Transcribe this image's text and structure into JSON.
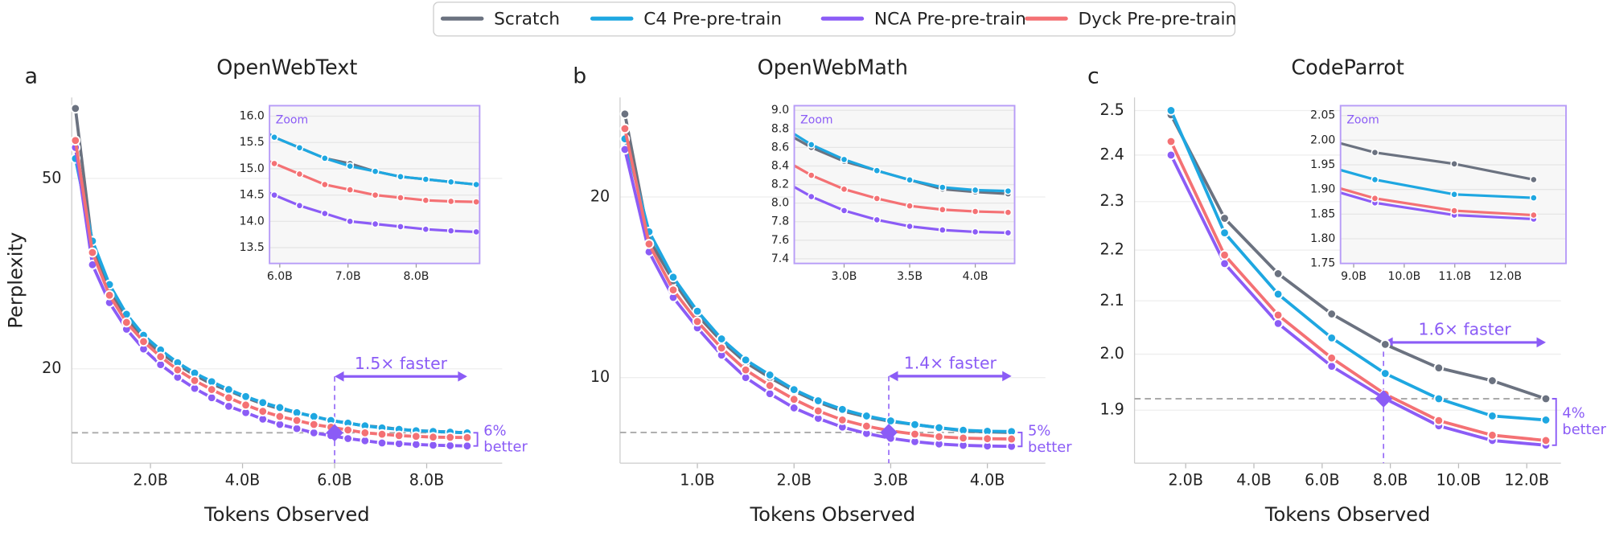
{
  "chart_data": [
    {
      "type": "line",
      "panel_label": "a",
      "title": "OpenWebText",
      "xlabel": "Tokens Observed",
      "ylabel": "Perplexity",
      "log_y": true,
      "grid": true,
      "x": [
        0.37,
        0.74,
        1.11,
        1.48,
        1.85,
        2.22,
        2.59,
        2.96,
        3.33,
        3.7,
        4.07,
        4.44,
        4.81,
        5.18,
        5.55,
        5.92,
        6.29,
        6.66,
        7.03,
        7.4,
        7.77,
        8.14,
        8.51,
        8.88
      ],
      "series": [
        {
          "name": "Scratch",
          "color": "#6b7280",
          "values": [
            70,
            36,
            29,
            25.5,
            23.2,
            21.6,
            20.4,
            19.4,
            18.6,
            18.0,
            17.4,
            16.9,
            16.5,
            16.2,
            15.9,
            15.6,
            15.4,
            15.2,
            15.1,
            14.95,
            14.85,
            14.8,
            14.75,
            14.7
          ]
        },
        {
          "name": "C4 Pre-pre-train",
          "color": "#1ea7e1",
          "values": [
            55,
            37,
            30,
            26,
            23.5,
            21.9,
            20.6,
            19.6,
            18.8,
            18.1,
            17.5,
            17.0,
            16.6,
            16.2,
            15.9,
            15.6,
            15.4,
            15.2,
            15.05,
            14.95,
            14.85,
            14.8,
            14.75,
            14.7
          ]
        },
        {
          "name": "NCA Pre-pre-train",
          "color": "#8b5cf6",
          "values": [
            58,
            33,
            27.5,
            24.2,
            22,
            20.4,
            19.2,
            18.2,
            17.4,
            16.7,
            16.2,
            15.7,
            15.3,
            15.0,
            14.7,
            14.5,
            14.3,
            14.15,
            14.0,
            13.95,
            13.9,
            13.85,
            13.82,
            13.8
          ]
        },
        {
          "name": "Dyck Pre-pre-train",
          "color": "#f47174",
          "values": [
            60,
            35,
            28.5,
            25,
            22.8,
            21.2,
            19.9,
            18.9,
            18.1,
            17.4,
            16.8,
            16.3,
            15.9,
            15.6,
            15.3,
            15.1,
            14.9,
            14.7,
            14.6,
            14.5,
            14.45,
            14.4,
            14.38,
            14.37
          ]
        }
      ],
      "xlim": [
        0.29,
        9.64
      ],
      "ylim": [
        12.7,
        73.8
      ],
      "xticks": [
        {
          "value": 2,
          "label": "2.0B"
        },
        {
          "value": 4,
          "label": "4.0B"
        },
        {
          "value": 6,
          "label": "6.0B"
        },
        {
          "value": 8,
          "label": "8.0B"
        }
      ],
      "yticks": [
        20,
        50
      ],
      "speedup": {
        "label": "1.5× faster",
        "from": 6.0,
        "to": 8.88
      },
      "match_point": {
        "x": 6.0,
        "y": 14.7
      },
      "gain": [
        "6%",
        "better"
      ],
      "inset": {
        "label": "Zoom",
        "xlim": [
          5.85,
          8.93
        ],
        "ylim": [
          13.2,
          16.2
        ],
        "xticks": [
          {
            "value": 6,
            "label": "6.0B"
          },
          {
            "value": 7,
            "label": "7.0B"
          },
          {
            "value": 8,
            "label": "8.0B"
          }
        ],
        "yticks": [
          13.5,
          {
            "value": 14,
            "label": "14.0"
          },
          14.5,
          {
            "value": 15,
            "label": "15.0"
          },
          15.5,
          {
            "value": 16,
            "label": "16.0"
          }
        ]
      }
    },
    {
      "type": "line",
      "panel_label": "b",
      "title": "OpenWebMath",
      "xlabel": "Tokens Observed",
      "log_y": true,
      "grid": true,
      "x": [
        0.25,
        0.5,
        0.75,
        1.0,
        1.25,
        1.5,
        1.75,
        2.0,
        2.25,
        2.5,
        2.75,
        3.0,
        3.25,
        3.5,
        3.75,
        4.0,
        4.25
      ],
      "series": [
        {
          "color": "#6b7280",
          "values": [
            27.5,
            17,
            14.5,
            12.7,
            11.5,
            10.6,
            10.0,
            9.5,
            9.1,
            8.8,
            8.6,
            8.45,
            8.35,
            8.25,
            8.15,
            8.12,
            8.1
          ]
        },
        {
          "color": "#1ea7e1",
          "values": [
            25,
            17.5,
            14.7,
            12.9,
            11.6,
            10.7,
            10.1,
            9.55,
            9.15,
            8.85,
            8.63,
            8.47,
            8.35,
            8.25,
            8.17,
            8.14,
            8.13
          ]
        },
        {
          "color": "#8b5cf6",
          "values": [
            24,
            16.2,
            13.6,
            12.1,
            10.9,
            10.0,
            9.4,
            8.9,
            8.55,
            8.27,
            8.07,
            7.92,
            7.82,
            7.75,
            7.71,
            7.69,
            7.68
          ]
        },
        {
          "color": "#f47174",
          "values": [
            26,
            16.7,
            14,
            12.4,
            11.2,
            10.3,
            9.7,
            9.2,
            8.8,
            8.5,
            8.3,
            8.15,
            8.05,
            7.97,
            7.93,
            7.91,
            7.9
          ]
        }
      ],
      "xlim": [
        0.2,
        4.6
      ],
      "ylim": [
        7.2,
        29.3
      ],
      "xticks": [
        {
          "value": 1,
          "label": "1.0B"
        },
        {
          "value": 2,
          "label": "2.0B"
        },
        {
          "value": 3,
          "label": "3.0B"
        },
        {
          "value": 4,
          "label": "4.0B"
        }
      ],
      "yticks": [
        10,
        20
      ],
      "speedup": {
        "label": "1.4× faster",
        "from": 2.98,
        "to": 4.25
      },
      "match_point": {
        "x": 2.98,
        "y": 8.1
      },
      "gain": [
        "5%",
        "better"
      ],
      "inset": {
        "label": "Zoom",
        "xlim": [
          2.62,
          4.3
        ],
        "ylim": [
          7.35,
          9.05
        ],
        "xticks": [
          {
            "value": 3,
            "label": "3.0B"
          },
          {
            "value": 3.5,
            "label": "3.5B"
          },
          {
            "value": 4,
            "label": "4.0B"
          }
        ],
        "yticks": [
          7.4,
          7.6,
          7.8,
          {
            "value": 8,
            "label": "8.0"
          },
          8.2,
          8.4,
          8.6,
          8.8,
          {
            "value": 9,
            "label": "9.0"
          }
        ]
      }
    },
    {
      "type": "line",
      "panel_label": "c",
      "title": "CodeParrot",
      "xlabel": "Tokens Observed",
      "log_y": true,
      "grid": true,
      "x": [
        1.57,
        3.14,
        4.71,
        6.28,
        7.85,
        9.42,
        10.99,
        12.56
      ],
      "series": [
        {
          "color": "#6b7280",
          "values": [
            2.49,
            2.265,
            2.153,
            2.075,
            2.018,
            1.975,
            1.952,
            1.92
          ]
        },
        {
          "color": "#1ea7e1",
          "values": [
            2.5,
            2.235,
            2.113,
            2.03,
            1.965,
            1.92,
            1.89,
            1.883
          ]
        },
        {
          "color": "#8b5cf6",
          "values": [
            2.4,
            2.173,
            2.057,
            1.978,
            1.92,
            1.873,
            1.848,
            1.84
          ]
        },
        {
          "color": "#f47174",
          "values": [
            2.43,
            2.19,
            2.073,
            1.993,
            1.928,
            1.882,
            1.857,
            1.848
          ]
        }
      ],
      "xlim": [
        0.5,
        13.0
      ],
      "ylim": [
        1.81,
        2.53
      ],
      "xticks": [
        {
          "value": 2,
          "label": "2.0B"
        },
        {
          "value": 4,
          "label": "4.0B"
        },
        {
          "value": 6,
          "label": "6.0B"
        },
        {
          "value": 8,
          "label": "8.0B"
        },
        {
          "value": 10,
          "label": "10.0B"
        },
        {
          "value": 12,
          "label": "12.0B"
        }
      ],
      "yticks": [
        1.9,
        {
          "value": 2,
          "label": "2.0"
        },
        2.1,
        2.2,
        2.3,
        2.4,
        2.5
      ],
      "speedup": {
        "label": "1.6× faster",
        "from": 7.8,
        "to": 12.56
      },
      "match_point": {
        "x": 7.8,
        "y": 1.92
      },
      "gain": [
        "4%",
        "better"
      ],
      "inset": {
        "label": "Zoom",
        "xlim": [
          8.74,
          13.2
        ],
        "ylim": [
          1.75,
          2.07
        ],
        "xticks": [
          {
            "value": 9,
            "label": "9.0B"
          },
          {
            "value": 10,
            "label": "10.0B"
          },
          {
            "value": 11,
            "label": "11.0B"
          },
          {
            "value": 12,
            "label": "12.0B"
          }
        ],
        "yticks": [
          1.75,
          {
            "value": 1.8,
            "label": "1.80"
          },
          1.85,
          {
            "value": 1.9,
            "label": "1.90"
          },
          1.95,
          {
            "value": 2,
            "label": "2.00"
          },
          2.05
        ]
      }
    }
  ]
}
